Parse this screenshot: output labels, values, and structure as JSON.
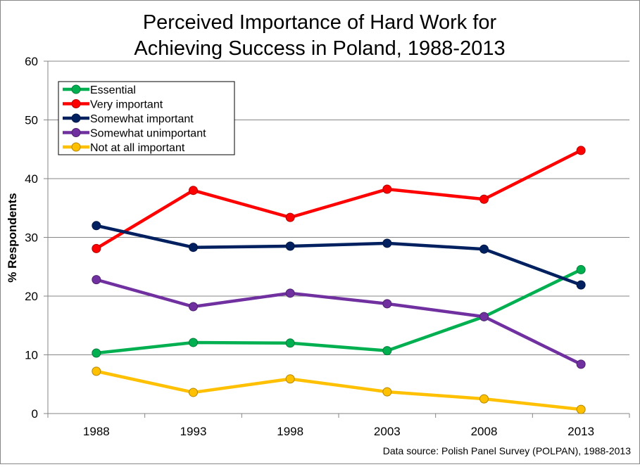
{
  "chart_data": {
    "type": "line",
    "title_line1": "Perceived Importance of Hard Work for",
    "title_line2": "Achieving Success in Poland, 1988-2013",
    "xlabel": "",
    "ylabel": "% Respondents",
    "ylim": [
      0,
      60
    ],
    "yticks": [
      0,
      10,
      20,
      30,
      40,
      50,
      60
    ],
    "categories": [
      "1988",
      "1993",
      "1998",
      "2003",
      "2008",
      "2013"
    ],
    "grid": "horizontal",
    "legend_position": "top-left",
    "source": "Data source: Polish Panel Survey (POLPAN), 1988-2013",
    "series": [
      {
        "name": "Essential",
        "color": "#00B050",
        "values": [
          10.3,
          12.1,
          12.0,
          10.7,
          16.5,
          24.5
        ]
      },
      {
        "name": "Very important",
        "color": "#FF0000",
        "values": [
          28.1,
          38.0,
          33.4,
          38.2,
          36.5,
          44.8
        ]
      },
      {
        "name": "Somewhat important",
        "color": "#002060",
        "values": [
          32.0,
          28.3,
          28.5,
          29.0,
          28.0,
          21.9
        ]
      },
      {
        "name": "Somewhat unimportant",
        "color": "#7030A0",
        "values": [
          22.8,
          18.2,
          20.5,
          18.7,
          16.5,
          8.4
        ]
      },
      {
        "name": "Not at all important",
        "color": "#FFC000",
        "values": [
          7.2,
          3.6,
          5.9,
          3.7,
          2.5,
          0.7
        ]
      }
    ]
  }
}
